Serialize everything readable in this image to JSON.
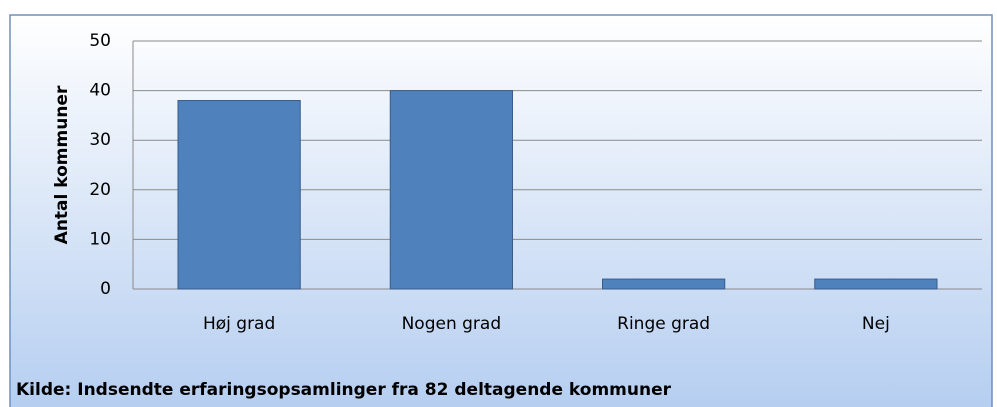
{
  "chart_data": {
    "type": "bar",
    "categories": [
      "Høj grad",
      "Nogen grad",
      "Ringe grad",
      "Nej"
    ],
    "values": [
      38,
      40,
      2,
      2
    ],
    "color": "#4f81bd",
    "ylabel": "Antal kommuner",
    "note": "Kilde: Indsendte erfaringsopsamlinger fra 82 deltagende kommuner",
    "ylim": [
      0,
      50
    ],
    "yticks": [
      0,
      10,
      20,
      30,
      40,
      50
    ],
    "grid": true
  }
}
